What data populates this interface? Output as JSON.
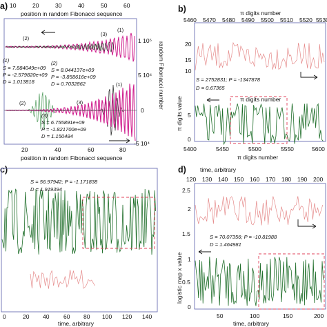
{
  "chart_data": [
    {
      "panel": "a)",
      "type": "line",
      "xlabel_top": "position in random Fibonacci sequence",
      "xlabel_bottom": "position in random Fibonacci sequence",
      "ylabel_right": "random Fibonacci number",
      "xlim": [
        0,
        100
      ],
      "xticks_top": [
        "10",
        "20",
        "30",
        "40",
        "50",
        "60"
      ],
      "xticks_bottom": [
        "20",
        "40",
        "60",
        "80"
      ],
      "yticks_right": [
        "1 10⁵",
        "5 10⁴",
        "0",
        "-5 10⁴"
      ],
      "markers": [
        "(1)",
        "(2)",
        "(3)",
        "(1)",
        "(2)",
        "(3)"
      ],
      "stats": [
        [
          "(1)",
          "S = 7.884049e+09",
          "P = -2.579820e+09",
          "D = 1.013818"
        ],
        [
          "(2)",
          "S = 8.044137e+09",
          "P = -3.858616e+09",
          "D = 0.7032862"
        ],
        [
          "(3)",
          "S = 6.755891e+09",
          "P = -1.821700e+09",
          "D = 1.150484"
        ]
      ],
      "colors": {
        "series1": "#d0208f",
        "series2": "#4e9a5a",
        "series3": "#222222"
      }
    },
    {
      "panel": "b)",
      "type": "line",
      "xlabel_top": "π digits number",
      "xlabel_bottom": "π digits number",
      "ylabel": "π digits value",
      "xticks_top": [
        "5460",
        "5470",
        "5480",
        "5490",
        "5500",
        "5510",
        "5520",
        "5530"
      ],
      "xticks_bottom": [
        "5400",
        "5450",
        "5500",
        "5550",
        "5600"
      ],
      "yticks": [
        "0",
        "5",
        "10",
        "15",
        "20"
      ],
      "stats": [
        "S = 2752831; P = -1347878",
        "D = 0.67365"
      ],
      "colors": {
        "upper": "#e58a8a",
        "lower": "#1f6e2a",
        "box": "#e0405a"
      }
    },
    {
      "panel": "c)",
      "type": "line",
      "xlabel_bottom": "time, arbitrary",
      "xticks_bottom": [
        "0",
        "20",
        "40",
        "60",
        "80",
        "100",
        "120",
        "140"
      ],
      "stats": [
        "S = 56.97942; P = -1.171838",
        "D = 1.919394"
      ],
      "colors": {
        "upper": "#1f6e2a",
        "lower": "#e58a8a",
        "box": "#e0405a"
      }
    },
    {
      "panel": "d)",
      "type": "line",
      "xlabel_top": "time, arbitrary",
      "xlabel_bottom": "time, arbitrary",
      "ylabel": "logistic map x value",
      "xticks_top": [
        "120",
        "130",
        "140",
        "150",
        "160",
        "170",
        "180",
        "190",
        "200"
      ],
      "xticks_bottom": [
        "50",
        "100",
        "150",
        "200"
      ],
      "yticks": [
        "0",
        "0.5",
        "1",
        "1.5",
        "2",
        "2.5"
      ],
      "stats": [
        "S = 70.07356; P = -10.81988",
        "D = 1.464981"
      ],
      "colors": {
        "upper": "#e58a8a",
        "lower": "#1f6e2a",
        "box": "#e0405a"
      }
    }
  ]
}
